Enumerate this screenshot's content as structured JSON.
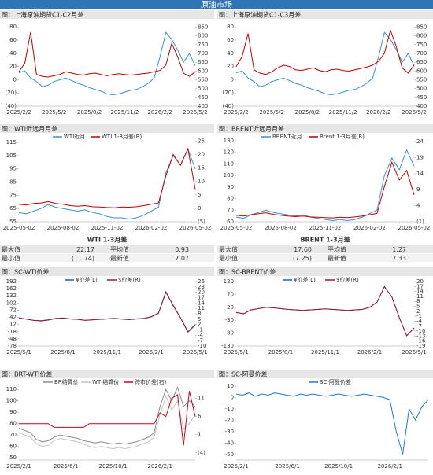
{
  "header": {
    "title": "原油市场"
  },
  "chart_data": [
    {
      "type": "line",
      "title": "图：上海原油期货C1-C2月差",
      "categories": [
        "2025/2/2",
        null,
        null,
        null,
        null,
        null,
        "2025/5/2",
        null,
        null,
        null,
        null,
        null,
        "2025/8/2",
        null,
        null,
        null,
        null,
        null,
        "2025/11/2",
        null,
        null,
        null,
        null,
        null,
        "2026/2/2",
        null,
        null,
        null,
        null,
        null,
        "2026/5/2"
      ],
      "ylim": [
        -40,
        85
      ],
      "yticks": [
        {
          "value": -40,
          "label": "(40)"
        },
        {
          "value": -20,
          "label": "(20)"
        },
        0,
        20,
        40,
        60,
        80
      ],
      "y2lim": [
        400,
        870
      ],
      "y2ticks": [
        400,
        450,
        500,
        550,
        600,
        650,
        700,
        750,
        800,
        850
      ],
      "series": [
        {
          "color": "#3b8fd6",
          "axis": "y2",
          "values": [
            590,
            600,
            560,
            540,
            510,
            520,
            540,
            550,
            560,
            545,
            530,
            520,
            505,
            495,
            485,
            470,
            465,
            470,
            480,
            490,
            495,
            510,
            530,
            560,
            680,
            820,
            780,
            720,
            650,
            700,
            630
          ]
        },
        {
          "color": "#c00000",
          "values": [
            12,
            25,
            72,
            8,
            5,
            4,
            6,
            8,
            12,
            10,
            8,
            7,
            9,
            10,
            8,
            6,
            8,
            9,
            8,
            7,
            8,
            9,
            10,
            12,
            14,
            22,
            55,
            35,
            10,
            5,
            12
          ]
        }
      ]
    },
    {
      "type": "line",
      "title": "图：上海原油期货C1-C3月差",
      "categories": [
        "2025/2/2",
        null,
        null,
        null,
        null,
        null,
        "2025/5/2",
        null,
        null,
        null,
        null,
        null,
        "2025/8/2",
        null,
        null,
        null,
        null,
        null,
        "2025/11/2",
        null,
        null,
        null,
        null,
        null,
        "2026/2/2",
        null,
        null,
        null,
        null,
        null,
        "2026/5/2"
      ],
      "ylim": [
        -40,
        85
      ],
      "yticks": [
        {
          "value": -40,
          "label": "(40)"
        },
        {
          "value": -20,
          "label": "(20)"
        },
        0,
        20,
        40,
        60,
        80
      ],
      "y2lim": [
        400,
        870
      ],
      "y2ticks": [
        400,
        450,
        500,
        550,
        600,
        650,
        700,
        750,
        800,
        850
      ],
      "series": [
        {
          "color": "#3b8fd6",
          "axis": "y2",
          "values": [
            590,
            600,
            560,
            540,
            510,
            520,
            540,
            550,
            560,
            545,
            530,
            520,
            505,
            495,
            485,
            470,
            465,
            470,
            480,
            490,
            495,
            510,
            530,
            560,
            680,
            820,
            780,
            720,
            650,
            700,
            630
          ]
        },
        {
          "color": "#c00000",
          "values": [
            20,
            35,
            70,
            15,
            10,
            8,
            12,
            18,
            22,
            20,
            15,
            14,
            16,
            18,
            14,
            12,
            15,
            16,
            14,
            13,
            15,
            17,
            19,
            22,
            28,
            40,
            75,
            50,
            18,
            10,
            22
          ]
        }
      ]
    },
    {
      "type": "line",
      "title": "图：WTI近远月月差",
      "categories": [
        "2025-05-02",
        null,
        null,
        null,
        null,
        null,
        "2025-08-02",
        null,
        null,
        null,
        null,
        null,
        "2025-11-02",
        null,
        null,
        null,
        null,
        null,
        "2026-02-02",
        null,
        null,
        null,
        null,
        null,
        "2026-05-02"
      ],
      "ylim": [
        55,
        118
      ],
      "yticks": [
        55,
        65,
        75,
        85,
        95,
        105,
        115
      ],
      "y2lim": [
        -5,
        26
      ],
      "y2ticks": [
        {
          "value": -5,
          "label": "(5)"
        },
        0,
        5,
        10,
        15,
        20,
        25
      ],
      "series": [
        {
          "name": "WTI近月",
          "color": "#3b8fd6",
          "values": [
            62,
            61,
            63,
            65,
            68,
            66,
            65,
            64,
            63,
            64,
            62,
            61,
            59,
            58,
            58,
            57,
            58,
            60,
            63,
            66,
            92,
            105,
            98,
            110,
            95
          ]
        },
        {
          "name": "WTI 1-3月差(R)",
          "color": "#c00000",
          "axis": "y2",
          "values": [
            1.5,
            1.2,
            1.8,
            2.0,
            2.5,
            1.8,
            1.5,
            1.0,
            0.8,
            1.0,
            0.6,
            0.5,
            0.3,
            0.2,
            0.5,
            0.4,
            0.6,
            1.0,
            1.5,
            2.0,
            12,
            20,
            16,
            22.17,
            7.07
          ]
        }
      ]
    },
    {
      "type": "line",
      "title": "图：BRENT近远月月差",
      "categories": [
        "2025-05-02",
        null,
        null,
        null,
        null,
        null,
        "2025-08-02",
        null,
        null,
        null,
        null,
        null,
        "2025-11-02",
        null,
        null,
        null,
        null,
        null,
        "2026-02-02",
        null,
        null,
        null,
        null,
        null,
        "2026-05-02"
      ],
      "ylim": [
        60,
        132
      ],
      "yticks": [
        60,
        70,
        80,
        90,
        100,
        110,
        120,
        130
      ],
      "y2lim": [
        -1,
        25
      ],
      "y2ticks": [
        {
          "value": -1,
          "label": "(1)"
        },
        4,
        9,
        14,
        19,
        24
      ],
      "series": [
        {
          "name": "BRENT近月",
          "color": "#3b8fd6",
          "values": [
            64,
            63,
            66,
            68,
            70,
            68,
            67,
            66,
            65,
            66,
            64,
            63,
            62,
            61,
            62,
            61,
            62,
            64,
            67,
            70,
            100,
            115,
            105,
            122,
            108
          ]
        },
        {
          "name": "Brent 1-3月差(R)",
          "color": "#c00000",
          "axis": "y2",
          "values": [
            1.0,
            0.8,
            1.2,
            1.5,
            1.8,
            1.3,
            1.0,
            0.8,
            0.6,
            0.8,
            0.5,
            0.4,
            0.3,
            0.2,
            0.4,
            0.3,
            0.5,
            0.8,
            1.2,
            1.6,
            10,
            17.6,
            12,
            15,
            7.33
          ]
        }
      ]
    },
    {
      "type": "line",
      "title": "图：SC-WTI价差",
      "categories": [
        "2025/5/1",
        null,
        null,
        null,
        null,
        null,
        "2025/8/1",
        null,
        null,
        null,
        null,
        null,
        "2025/11/1",
        null,
        null,
        null,
        null,
        null,
        "2026/2/1",
        null,
        null,
        null,
        null,
        null,
        "2026/5/1"
      ],
      "ylim": [
        -78,
        192
      ],
      "yticks": [
        -78,
        -48,
        -18,
        12,
        42,
        72,
        102,
        132,
        162,
        192
      ],
      "y2lim": [
        -10,
        26
      ],
      "y2ticks": [
        -10,
        -7,
        -4,
        -1,
        2,
        5,
        8,
        11,
        14,
        17,
        20,
        23,
        26
      ],
      "series": [
        {
          "name": "¥价差(L)",
          "color": "#1f5fbf",
          "values": [
            40,
            35,
            30,
            28,
            32,
            38,
            40,
            36,
            34,
            30,
            32,
            34,
            36,
            38,
            35,
            33,
            36,
            38,
            45,
            60,
            150,
            90,
            40,
            -20,
            10
          ]
        },
        {
          "name": "$价差(R)",
          "color": "#a0182b",
          "axis": "y2",
          "values": [
            5.7,
            5.0,
            4.3,
            4.0,
            4.5,
            5.3,
            5.6,
            5.1,
            4.9,
            4.3,
            4.6,
            4.9,
            5.1,
            5.4,
            5.0,
            4.7,
            5.1,
            5.3,
            6.3,
            8.2,
            20,
            12.8,
            5.8,
            -2,
            2
          ]
        }
      ]
    },
    {
      "type": "line",
      "title": "图：SC-BRENT价差",
      "categories": [
        "2025/5/1",
        null,
        null,
        null,
        null,
        null,
        "2025/8/1",
        null,
        null,
        null,
        null,
        null,
        "2025/11/1",
        null,
        null,
        null,
        null,
        null,
        "2026/2/1",
        null,
        null,
        null,
        null,
        null,
        "2026/5/1"
      ],
      "ylim": [
        -130,
        120
      ],
      "yticks": [
        -130,
        -80,
        -30,
        20,
        70,
        120
      ],
      "y2lim": [
        -19,
        20
      ],
      "y2ticks": [
        -19,
        -16,
        -13,
        -10,
        -7,
        -4,
        -1,
        2,
        5,
        8,
        11,
        14,
        17,
        20
      ],
      "series": [
        {
          "name": "¥价差(L)",
          "color": "#1f5fbf",
          "values": [
            0,
            -5,
            10,
            15,
            20,
            18,
            15,
            12,
            10,
            8,
            10,
            12,
            14,
            12,
            10,
            8,
            10,
            12,
            20,
            40,
            100,
            60,
            -20,
            -90,
            -60
          ]
        },
        {
          "name": "$价差(R)",
          "color": "#a0182b",
          "axis": "y2",
          "values": [
            1.3,
            0.5,
            2.9,
            3.6,
            4.4,
            4.1,
            3.6,
            3.1,
            2.9,
            2.6,
            2.9,
            3.1,
            3.4,
            3.1,
            2.9,
            2.5,
            2.9,
            3.1,
            4.4,
            7.5,
            16.9,
            10.7,
            -1.8,
            -12.8,
            -8.1
          ]
        }
      ]
    },
    {
      "type": "line",
      "title": "图：BRT-WTI价差",
      "categories": [
        "2025/2/1",
        null,
        null,
        null,
        null,
        null,
        null,
        null,
        "2025/6/1",
        null,
        null,
        null,
        null,
        null,
        null,
        null,
        "2025/10/1",
        null,
        null,
        null,
        null,
        null,
        null,
        null,
        "2026/2/1",
        null,
        null,
        null,
        null,
        null,
        null
      ],
      "ylim": [
        48,
        115
      ],
      "yticks": [
        50,
        60,
        70,
        80,
        90,
        100,
        110
      ],
      "y2lim": [
        -6,
        15
      ],
      "y2ticks": [
        {
          "value": -4,
          "label": "(4)"
        },
        1,
        6,
        11
      ],
      "series": [
        {
          "name": "BR结算价",
          "color": "#8c8c8c",
          "values": [
            76,
            74,
            72,
            66,
            64,
            65,
            68,
            70,
            69,
            68,
            67,
            65,
            64,
            63,
            64,
            63,
            62,
            63,
            62,
            63,
            64,
            66,
            68,
            72,
            95,
            110,
            100,
            112,
            95,
            100,
            95
          ]
        },
        {
          "name": "WTI结算价",
          "color": "#c4c4c4",
          "values": [
            72,
            70,
            68,
            62,
            60,
            61,
            65,
            67,
            66,
            65,
            64,
            62,
            60,
            59,
            60,
            59,
            58,
            59,
            58,
            59,
            60,
            62,
            64,
            68,
            88,
            104,
            92,
            100,
            75,
            80,
            88
          ]
        },
        {
          "name": "跨市价差(右)",
          "color": "#d0021b",
          "axis": "y2",
          "values": [
            4,
            4,
            4,
            4,
            4,
            4,
            3,
            3,
            3,
            3,
            3,
            3,
            4,
            4,
            4,
            4,
            4,
            4,
            4,
            4,
            4,
            4,
            4,
            4,
            7,
            6,
            11,
            12,
            -2,
            13,
            6
          ]
        }
      ]
    },
    {
      "type": "line",
      "title": "图：SC-阿曼价差",
      "categories": [
        "2025/2/1",
        null,
        null,
        null,
        null,
        null,
        null,
        null,
        "2025/6/1",
        null,
        null,
        null,
        null,
        null,
        null,
        null,
        "2025/10/1",
        null,
        null,
        null,
        null,
        null,
        null,
        null,
        "2026/2/1",
        null,
        null,
        null,
        null,
        null,
        null
      ],
      "ylim": [
        -55,
        12
      ],
      "yticks": [
        -50,
        -40,
        -30,
        -20,
        -10,
        0,
        10
      ],
      "series": [
        {
          "name": "SC-阿曼价差",
          "color": "#1f78c8",
          "values": [
            3,
            2,
            4,
            1,
            3,
            2,
            4,
            3,
            2,
            1,
            3,
            2,
            3,
            2,
            1,
            2,
            3,
            2,
            1,
            2,
            3,
            2,
            1,
            0,
            -2,
            -30,
            -50,
            -10,
            -20,
            -8,
            -2
          ]
        }
      ]
    }
  ],
  "tables": [
    {
      "title": "WTI 1-3月差",
      "rows": [
        [
          "最大值",
          "22.17",
          "平均值",
          "0.93"
        ],
        [
          "最小值",
          "(11.74)",
          "最新值",
          "7.07"
        ]
      ]
    },
    {
      "title": "BRENT 1-3月差",
      "rows": [
        [
          "最大值",
          "17.60",
          "平均值",
          "1.27"
        ],
        [
          "最小值",
          "(7.25)",
          "最新值",
          "7.33"
        ]
      ]
    }
  ]
}
